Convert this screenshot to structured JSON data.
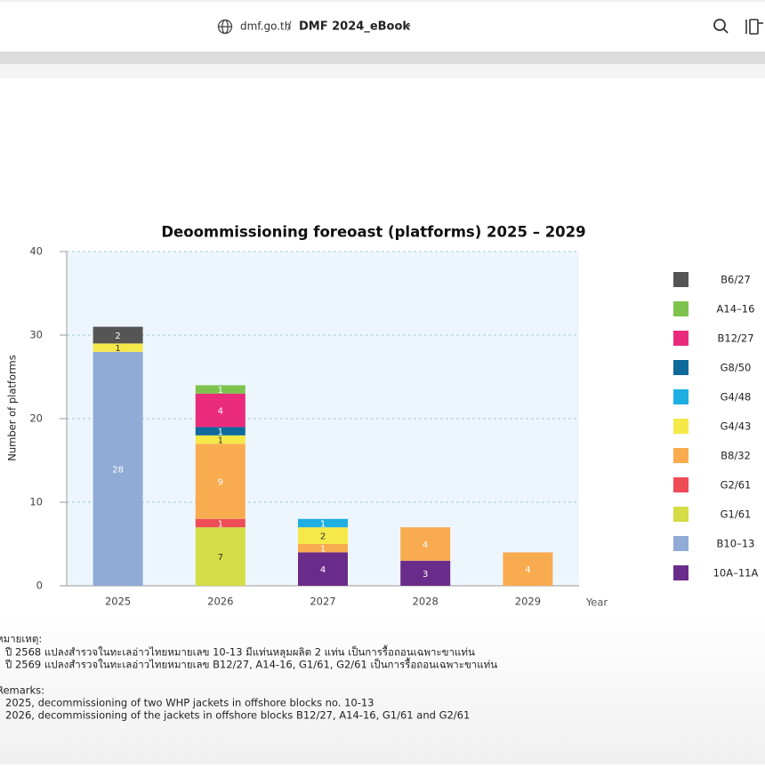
{
  "header": {
    "site": "dmf.go.th",
    "separator": "/",
    "title": "DMF 2024_eBook"
  },
  "chart_data": {
    "type": "stacked-bar",
    "title": "Deoommissioning foreoast (platforms) 2025 – 2029",
    "y_label": "Number of platforms",
    "x_label": "Year",
    "categories": [
      "2025",
      "2026",
      "2027",
      "2028",
      "2029"
    ],
    "ylim": [
      0,
      40
    ],
    "yticks": [
      0,
      10,
      20,
      30,
      40
    ],
    "grid": true,
    "series": [
      {
        "name": "10A–11A",
        "color": "#6a2c8a",
        "values": [
          null,
          null,
          4,
          3,
          null
        ]
      },
      {
        "name": "B10–13",
        "color": "#8fabd6",
        "values": [
          28,
          null,
          null,
          null,
          null
        ]
      },
      {
        "name": "G1/61",
        "color": "#d4dd46",
        "values": [
          null,
          7,
          null,
          null,
          null
        ]
      },
      {
        "name": "G2/61",
        "color": "#ee4c57",
        "values": [
          null,
          1,
          null,
          null,
          null
        ]
      },
      {
        "name": "B8/32",
        "color": "#f9ab50",
        "values": [
          null,
          9,
          1,
          4,
          4
        ]
      },
      {
        "name": "G4/43",
        "color": "#f5e94a",
        "values": [
          1,
          1,
          2,
          null,
          null
        ]
      },
      {
        "name": "G4/48",
        "color": "#1eaee2",
        "values": [
          null,
          null,
          1,
          null,
          null
        ]
      },
      {
        "name": "G8/50",
        "color": "#0e6a9a",
        "values": [
          null,
          1,
          null,
          null,
          null
        ]
      },
      {
        "name": "B12/27",
        "color": "#ea2a7a",
        "values": [
          null,
          4,
          null,
          null,
          null
        ]
      },
      {
        "name": "A14–16",
        "color": "#7dc34e",
        "values": [
          null,
          1,
          null,
          null,
          null
        ]
      },
      {
        "name": "B6/27",
        "color": "#555555",
        "values": [
          2,
          null,
          null,
          null,
          null
        ]
      }
    ]
  },
  "notes": {
    "thai_heading": "หมายเหตุ:",
    "thai_lines": [
      "ปี 2568 แปลงสำรวจในทะเลอ่าวไทยหมายเลข 10-13 มีแท่นหลุมผลิต 2 แท่น เป็นการรื้อถอนเฉพาะขาแท่น",
      "ปี 2569 แปลงสำรวจในทะเลอ่าวไทยหมายเลข B12/27, A14-16, G1/61, G2/61 เป็นการรื้อถอนเฉพาะขาแท่น"
    ],
    "remarks_heading": "Remarks:",
    "remarks_lines": [
      "2025, decommissioning of two WHP jackets in offshore blocks no. 10-13",
      "2026, decommissioning of the jackets in offshore blocks B12/27, A14-16, G1/61 and G2/61"
    ]
  }
}
